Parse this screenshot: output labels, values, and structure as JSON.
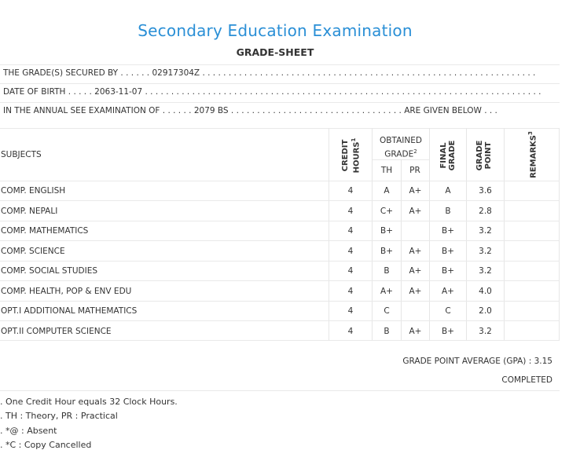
{
  "header": {
    "title": "Secondary Education Examination",
    "subtitle": "GRADE-SHEET"
  },
  "info": {
    "secured_by": "THE GRADE(S) SECURED BY . . . . . . 02917304Z . . . . . . . . . . . . . . . . . . . . . . . . . . . . . . . . . . . . . . . . . . . . . . . . . . . . . . . . . . . . . . . .",
    "dob": "DATE OF BIRTH . . . . . 2063-11-07 . . . . . . . . . . . . . . . . . . . . . . . . . . . . . . . . . . . . . . . . . . . . . . . . . . . . . . . . . . . . . . . . . . . . . . . . . . . .",
    "exam": "IN THE ANNUAL SEE EXAMINATION OF . . . . . . 2079 BS . . . . . . . . . . . . . . . . . . . . . . . . . . . . . . . . . ARE GIVEN BELOW . . ."
  },
  "table": {
    "col_subjects": "SUBJECTS",
    "col_credit_line1": "CREDIT",
    "col_credit_line2": "HOURS",
    "col_credit_sup": "1",
    "col_obtained_line1": "OBTAINED",
    "col_obtained_line2": "GRADE",
    "col_obtained_sup": "2",
    "col_th": "TH",
    "col_pr": "PR",
    "col_final_line1": "FINAL",
    "col_final_line2": "GRADE",
    "col_gp_line1": "GRADE",
    "col_gp_line2": "POINT",
    "col_remarks": "REMARKS",
    "col_remarks_sup": "3",
    "rows": [
      {
        "subject": "COMP. ENGLISH",
        "credit": "4",
        "th": "A",
        "pr": "A+",
        "final": "A",
        "gp": "3.6"
      },
      {
        "subject": "COMP. NEPALI",
        "credit": "4",
        "th": "C+",
        "pr": "A+",
        "final": "B",
        "gp": "2.8"
      },
      {
        "subject": "COMP. MATHEMATICS",
        "credit": "4",
        "th": "B+",
        "pr": "",
        "final": "B+",
        "gp": "3.2"
      },
      {
        "subject": "COMP. SCIENCE",
        "credit": "4",
        "th": "B+",
        "pr": "A+",
        "final": "B+",
        "gp": "3.2"
      },
      {
        "subject": "COMP. SOCIAL STUDIES",
        "credit": "4",
        "th": "B",
        "pr": "A+",
        "final": "B+",
        "gp": "3.2"
      },
      {
        "subject": "COMP. HEALTH, POP & ENV EDU",
        "credit": "4",
        "th": "A+",
        "pr": "A+",
        "final": "A+",
        "gp": "4.0"
      },
      {
        "subject": "OPT.I ADDITIONAL MATHEMATICS",
        "credit": "4",
        "th": "C",
        "pr": "",
        "final": "C",
        "gp": "2.0"
      },
      {
        "subject": "OPT.II COMPUTER SCIENCE",
        "credit": "4",
        "th": "B",
        "pr": "A+",
        "final": "B+",
        "gp": "3.2"
      }
    ]
  },
  "summary": {
    "gpa": "GRADE POINT AVERAGE (GPA) : 3.15",
    "status": "COMPLETED"
  },
  "notes": [
    ". One Credit Hour equals 32 Clock Hours.",
    ". TH : Theory, PR : Practical",
    ". *@ : Absent",
    ". *C : Copy Cancelled"
  ],
  "colors": {
    "title": "#2a8fd6",
    "text": "#333333",
    "rule": "#e9e9e9"
  }
}
